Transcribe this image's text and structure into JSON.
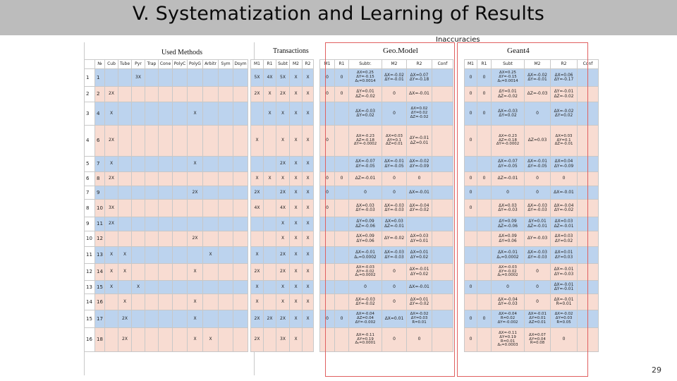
{
  "slide": {
    "title": "V. Systematization and Learning of Results",
    "page_number": "29"
  },
  "headers": {
    "inaccuracies": "Inaccuracies",
    "used_methods": "Used Methods",
    "transactions": "Transactions",
    "geomodel": "Geo.Model",
    "geant4": "Geant4"
  },
  "columns": [
    "№",
    "Cub",
    "Tube",
    "Pyr",
    "Trap",
    "Cone",
    "PolyC",
    "PolyG",
    "Arbitr",
    "Sym",
    "Dsym",
    "M1",
    "R1",
    "Subt",
    "M2",
    "R2",
    "M1",
    "R1",
    "Subtr.",
    "M2",
    "R2",
    "Conf",
    "M1",
    "R1",
    "Subt",
    "M2",
    "R2",
    "Conf"
  ],
  "rows": [
    {
      "i": "1",
      "c": [
        "1",
        "",
        "",
        "3X",
        "",
        "",
        "",
        "",
        "",
        "",
        "",
        "5X",
        "4X",
        "5X",
        "X",
        "X",
        "0",
        "0",
        "ΔX=0.25\nΔY=-0.15\nΔᵧ=0.0014",
        "ΔX=-0.02\nΔY=-0.01",
        "ΔX=0.07\nΔY=-0.18",
        "",
        "0",
        "0",
        "ΔX=0.25\nΔY=-0.15\nΔᵧ=0.0014",
        "ΔX=-0.02\nΔY=-0.01",
        "ΔX=0.06\nΔY=-0.17",
        ""
      ]
    },
    {
      "i": "2",
      "c": [
        "2",
        "2X",
        "",
        "",
        "",
        "",
        "",
        "",
        "",
        "",
        "",
        "2X",
        "X",
        "2X",
        "X",
        "X",
        "0",
        "0",
        "ΔY=0.01\nΔZ=-0.02",
        "0",
        "ΔX=-0.01",
        "",
        "0",
        "0",
        "ΔY=0.01\nΔZ=-0.02",
        "ΔZ=-0.03",
        "ΔY=-0.01\nΔZ=-0.02",
        ""
      ]
    },
    {
      "i": "3",
      "c": [
        "4",
        "X",
        "",
        "",
        "",
        "",
        "",
        "X",
        "",
        "",
        "",
        "",
        "X",
        "X",
        "X",
        "X",
        "",
        "",
        "ΔX=-0.03\nΔY=0.02",
        "0",
        "ΔX=0.02\nΔY=0.02\nΔZ=-0.02",
        "",
        "0",
        "0",
        "ΔX=-0.03\nΔY=0.02",
        "0",
        "ΔX=-0.02\nΔY=0.02",
        ""
      ]
    },
    {
      "i": "4",
      "c": [
        "6",
        "2X",
        "",
        "",
        "",
        "",
        "",
        "",
        "",
        "",
        "",
        "X",
        "",
        "X",
        "X",
        "X",
        "0",
        "",
        "ΔX=-0.23\nΔZ=-0.18\nΔY=-0.0002",
        "ΔX=0.03\nΔY=0.1\nΔZ=0.01",
        "ΔY=-0.01\nΔZ=0.01",
        "",
        "0",
        "",
        "ΔX=-0.23\nΔZ=-0.18\nΔY=-0.0002",
        "ΔZ=0.03",
        "ΔX=0.03\nΔY=0.1\nΔZ=-0.01",
        ""
      ]
    },
    {
      "i": "5",
      "c": [
        "7",
        "X",
        "",
        "",
        "",
        "",
        "",
        "X",
        "",
        "",
        "",
        "",
        "",
        "2X",
        "X",
        "X",
        "",
        "",
        "ΔX=-0.07\nΔY=-0.05",
        "ΔX=-0.01\nΔY=-0.05",
        "ΔX=-0.02\nΔY=-0.09",
        "",
        "",
        "",
        "ΔX=-0.07\nΔY=-0.05",
        "ΔX=-0.01\nΔY=-0.05",
        "ΔX=0.04\nΔY=-0.09",
        ""
      ]
    },
    {
      "i": "6",
      "c": [
        "8",
        "2X",
        "",
        "",
        "",
        "",
        "",
        "",
        "",
        "",
        "",
        "X",
        "X",
        "X",
        "X",
        "X",
        "0",
        "0",
        "ΔZ=-0.01",
        "0",
        "0",
        "",
        "0",
        "0",
        "ΔZ=-0.01",
        "0",
        "0",
        ""
      ]
    },
    {
      "i": "7",
      "c": [
        "9",
        "",
        "",
        "",
        "",
        "",
        "",
        "2X",
        "",
        "",
        "",
        "2X",
        "",
        "2X",
        "X",
        "X",
        "0",
        "",
        "0",
        "0",
        "ΔX=-0.01",
        "",
        "0",
        "",
        "0",
        "0",
        "ΔX=-0.01",
        ""
      ]
    },
    {
      "i": "8",
      "c": [
        "10",
        "3X",
        "",
        "",
        "",
        "",
        "",
        "",
        "",
        "",
        "",
        "4X",
        "",
        "4X",
        "X",
        "X",
        "0",
        "",
        "ΔX=0.03\nΔY=-0.03",
        "ΔX=-0.03\nΔY=-0.03",
        "ΔX=-0.04\nΔY=-0.02",
        "",
        "0",
        "",
        "ΔX=0.03\nΔY=-0.03",
        "ΔX=-0.03\nΔY=-0.03",
        "ΔX=-0.04\nΔY=-0.02",
        ""
      ]
    },
    {
      "i": "9",
      "c": [
        "11",
        "2X",
        "",
        "",
        "",
        "",
        "",
        "",
        "",
        "",
        "",
        "",
        "",
        "X",
        "X",
        "X",
        "",
        "",
        "ΔY=0.09\nΔZ=-0.06",
        "ΔX=0.03\nΔZ=-0.01",
        "",
        "",
        "",
        "",
        "ΔY=0.09\nΔZ=-0.06",
        "ΔY=0.01\nΔZ=-0.01",
        "ΔX=0.03\nΔZ=-0.01",
        ""
      ]
    },
    {
      "i": "10",
      "c": [
        "12",
        "",
        "",
        "",
        "",
        "",
        "",
        "2X",
        "",
        "",
        "",
        "",
        "",
        "X",
        "X",
        "X",
        "",
        "",
        "ΔX=0.09\nΔY=0.06",
        "ΔY=-0.02",
        "ΔX=0.03\nΔY=0.01",
        "",
        "",
        "",
        "ΔX=0.09\nΔY=0.06",
        "ΔY=-0.03",
        "ΔX=0.03\nΔY=0.02",
        ""
      ]
    },
    {
      "i": "11",
      "c": [
        "13",
        "X",
        "X",
        "",
        "",
        "",
        "",
        "",
        "X",
        "",
        "",
        "X",
        "",
        "2X",
        "X",
        "X",
        "",
        "",
        "ΔX=-0.01\nΔᵧ=0.0002",
        "ΔX=-0.03\nΔY=-0.03",
        "ΔX=0.01\nΔY=0.02",
        "",
        "",
        "",
        "ΔX=-0.01\nΔᵧ=0.0002",
        "ΔX=-0.03\nΔY=-0.03",
        "ΔX=0.01\nΔY=0.03",
        ""
      ]
    },
    {
      "i": "12",
      "c": [
        "14",
        "X",
        "X",
        "",
        "",
        "",
        "",
        "X",
        "",
        "",
        "",
        "2X",
        "",
        "2X",
        "X",
        "X",
        "",
        "",
        "ΔX=-0.03\nΔY=-0.02\nΔᵧ=0.0002",
        "0",
        "ΔX=-0.01\nΔY=0.02",
        "",
        "",
        "",
        "ΔX=-0.03\nΔY=-0.02\nΔᵧ=0.0002",
        "0",
        "ΔX=-0.01\nΔY=-0.03",
        ""
      ]
    },
    {
      "i": "13",
      "c": [
        "15",
        "X",
        "",
        "X",
        "",
        "",
        "",
        "",
        "",
        "",
        "",
        "X",
        "",
        "X",
        "X",
        "X",
        "",
        "",
        "0",
        "0",
        "ΔX=-0.01",
        "",
        "0",
        "",
        "0",
        "0",
        "ΔX=-0.01\nΔY=-0.01",
        ""
      ]
    },
    {
      "i": "14",
      "c": [
        "16",
        "",
        "X",
        "",
        "",
        "",
        "",
        "X",
        "",
        "",
        "",
        "X",
        "",
        "X",
        "X",
        "X",
        "",
        "",
        "ΔX=-0.03\nΔY=-0.02",
        "0",
        "ΔX=0.01\nΔY=-0.02",
        "",
        "",
        "",
        "ΔX=-0.04\nΔY=-0.03",
        "0",
        "ΔX=-0.01\nR=0.01",
        ""
      ]
    },
    {
      "i": "15",
      "c": [
        "17",
        "",
        "2X",
        "",
        "",
        "",
        "",
        "X",
        "",
        "",
        "",
        "2X",
        "2X",
        "2X",
        "X",
        "X",
        "0",
        "0",
        "ΔX=-0.04\nΔZ=0.04\nΔY=-0.002",
        "ΔX=0.01",
        "ΔX=-0.02\nΔY=0.03\nR=0.01",
        "",
        "0",
        "0",
        "ΔX=-0.04\nR=0.02\nΔY=-0.002",
        "ΔX=-0.01\nΔY=0.01\nΔZ=0.01",
        "ΔX=-0.02\nΔY=0.03\nR=0.05",
        ""
      ]
    },
    {
      "i": "16",
      "c": [
        "18",
        "",
        "2X",
        "",
        "",
        "",
        "",
        "X",
        "X",
        "",
        "",
        "2X",
        "",
        "3X",
        "X",
        "",
        "",
        "",
        "ΔX=-0.11\nΔY=0.19\nΔᵧ=0.0001",
        "0",
        "0",
        "",
        "0",
        "",
        "ΔX=-0.11\nΔY=0.19\nR=0.01\nΔᵧ=0.0003",
        "ΔX=0.07\nΔY=0.04\nR=0.08",
        "0",
        ""
      ]
    }
  ]
}
